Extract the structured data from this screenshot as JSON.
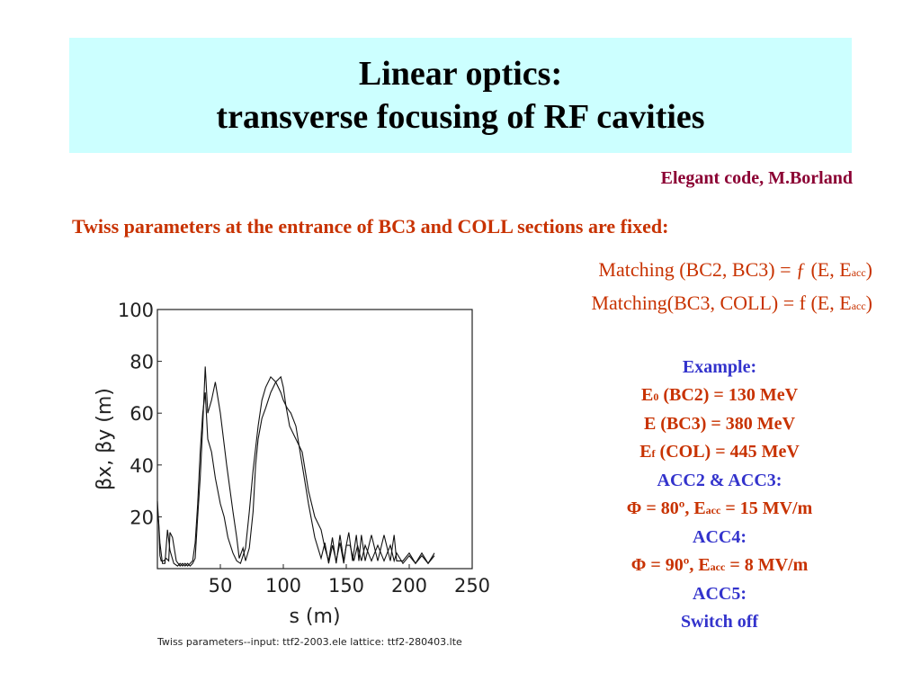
{
  "slide": {
    "title_line1": "Linear optics:",
    "title_line2": "transverse focusing of RF cavities",
    "credit": "Elegant code, M.Borland",
    "fixed_statement": "Twiss parameters at the entrance of BC3  and COLL sections are fixed:",
    "matching1_main": "Matching (BC2, BC3)  = ƒ (E, E",
    "matching1_sub": "acc",
    "matching1_tail": ")",
    "matching2_main": "Matching(BC3, COLL) = f (E, E",
    "matching2_sub": "acc",
    "matching2_tail": ")",
    "example": {
      "heading": "Example:",
      "e0_pre": "E",
      "e0_sub": "0",
      "e0_text": " (BC2) = 130 MeV",
      "e_text": "E  (BC3) = 380 MeV",
      "ef_pre": "E",
      "ef_sub": "f",
      "ef_text": " (COL)  = 445 MeV",
      "acc23": "ACC2 & ACC3:",
      "phi1_pre": "Φ = 80º, E",
      "phi1_sub": "acc",
      "phi1_post": " = 15 MV/m",
      "acc4": "ACC4:",
      "phi2_pre": "Φ = 90º, E",
      "phi2_sub": "acc",
      "phi2_post": " = 8 MV/m",
      "acc5": "ACC5:",
      "switch_off": "Switch off"
    },
    "colors": {
      "title_bg": "#ccffff",
      "credit": "#8b0033",
      "red_text": "#c83200",
      "blue_text": "#3333cc"
    }
  },
  "chart_data": {
    "type": "line",
    "xlabel": "s  (m)",
    "ylabel": "βx,  βy  (m)",
    "caption": "Twiss parameters--input:  ttf2-2003.ele    lattice:  ttf2-280403.lte",
    "xlim": [
      0,
      250
    ],
    "ylim": [
      0,
      100
    ],
    "xticks": [
      50,
      100,
      150,
      200,
      250
    ],
    "yticks": [
      20,
      40,
      60,
      80,
      100
    ],
    "series": [
      {
        "x": [
          0,
          1,
          2,
          3,
          5,
          7,
          9,
          10,
          12,
          15,
          18,
          20,
          22,
          24,
          26,
          28,
          30,
          32,
          34,
          36,
          38,
          40,
          43,
          46,
          50,
          55,
          60,
          63,
          65,
          68,
          70,
          73,
          76,
          78,
          80,
          83,
          86,
          90,
          94,
          98,
          100,
          102,
          105,
          110,
          115,
          120,
          125,
          130,
          133,
          136,
          139,
          142,
          145,
          148,
          150,
          152,
          155,
          158,
          160,
          162,
          165,
          170,
          175,
          180,
          185,
          188,
          190,
          195,
          200,
          205,
          210,
          215,
          220
        ],
        "y": [
          22,
          18,
          5,
          3,
          3,
          4,
          3,
          14,
          12,
          3,
          1,
          2,
          1,
          2,
          1,
          2,
          4,
          20,
          35,
          55,
          78,
          60,
          65,
          72,
          60,
          40,
          22,
          12,
          4,
          8,
          3,
          8,
          22,
          40,
          50,
          58,
          62,
          68,
          72,
          74,
          70,
          63,
          55,
          50,
          45,
          30,
          20,
          15,
          8,
          3,
          12,
          2,
          13,
          3,
          9,
          14,
          3,
          13,
          3,
          13,
          3,
          13,
          3,
          13,
          3,
          13,
          3,
          3,
          6,
          2,
          6,
          2,
          6
        ]
      },
      {
        "x": [
          0,
          2,
          4,
          6,
          8,
          10,
          13,
          16,
          18,
          20,
          22,
          24,
          26,
          28,
          30,
          32,
          34,
          36,
          38,
          40,
          43,
          46,
          50,
          53,
          56,
          60,
          63,
          66,
          70,
          73,
          76,
          80,
          83,
          86,
          90,
          94,
          98,
          100,
          103,
          106,
          110,
          115,
          120,
          125,
          130,
          133,
          136,
          139,
          142,
          145,
          148,
          150,
          153,
          156,
          159,
          162,
          165,
          170,
          175,
          180,
          185,
          188,
          190,
          195,
          200,
          205,
          210,
          215,
          220
        ],
        "y": [
          26,
          10,
          2,
          2,
          15,
          7,
          2,
          1,
          2,
          1,
          2,
          1,
          2,
          3,
          10,
          25,
          45,
          60,
          68,
          50,
          45,
          35,
          25,
          20,
          12,
          6,
          3,
          2,
          8,
          22,
          38,
          55,
          65,
          70,
          74,
          72,
          68,
          65,
          62,
          60,
          55,
          40,
          25,
          12,
          4,
          10,
          2,
          9,
          3,
          10,
          2,
          9,
          9,
          3,
          9,
          3,
          9,
          3,
          9,
          3,
          9,
          3,
          6,
          2,
          5,
          2,
          5,
          2,
          5
        ]
      }
    ]
  }
}
